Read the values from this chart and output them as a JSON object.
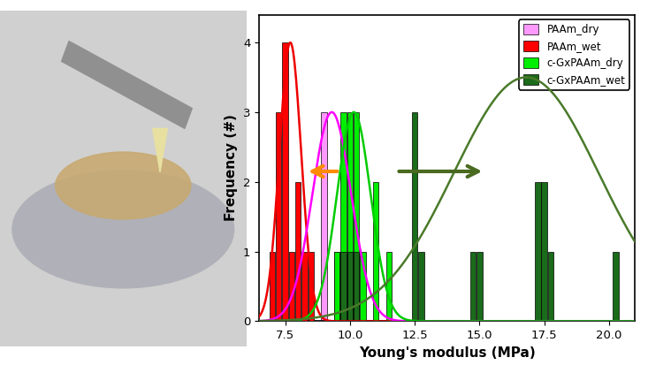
{
  "xlabel": "Young's modulus (MPa)",
  "ylabel": "Frequency (#)",
  "xlim": [
    6.5,
    21.0
  ],
  "ylim": [
    0,
    4.4
  ],
  "yticks": [
    0,
    1,
    2,
    3,
    4
  ],
  "xticks": [
    7.5,
    10.0,
    12.5,
    15.0,
    17.5,
    20.0
  ],
  "PAAm_dry": {
    "bars": [
      {
        "x": 9.0,
        "height": 3
      },
      {
        "x": 9.5,
        "height": 1
      },
      {
        "x": 10.0,
        "height": 1
      }
    ],
    "color": "#FF99FF",
    "curve_mean": 9.3,
    "curve_std": 0.75,
    "curve_scale": 3.0
  },
  "PAAm_wet": {
    "bars": [
      {
        "x": 7.0,
        "height": 1
      },
      {
        "x": 7.25,
        "height": 3
      },
      {
        "x": 7.5,
        "height": 4
      },
      {
        "x": 7.75,
        "height": 1
      },
      {
        "x": 8.0,
        "height": 2
      },
      {
        "x": 8.25,
        "height": 1
      },
      {
        "x": 8.5,
        "height": 1
      }
    ],
    "color": "#FF0000",
    "curve_mean": 7.7,
    "curve_std": 0.42,
    "curve_scale": 4.0
  },
  "cGxPAAm_dry": {
    "bars": [
      {
        "x": 9.5,
        "height": 1
      },
      {
        "x": 9.75,
        "height": 3
      },
      {
        "x": 10.0,
        "height": 3
      },
      {
        "x": 10.25,
        "height": 3
      },
      {
        "x": 10.5,
        "height": 1
      },
      {
        "x": 11.0,
        "height": 2
      },
      {
        "x": 11.5,
        "height": 1
      }
    ],
    "color": "#00EE00",
    "curve_mean": 10.15,
    "curve_std": 0.65,
    "curve_scale": 3.0
  },
  "cGxPAAm_wet": {
    "bars": [
      {
        "x": 9.75,
        "height": 1
      },
      {
        "x": 10.0,
        "height": 1
      },
      {
        "x": 10.25,
        "height": 1
      },
      {
        "x": 12.5,
        "height": 3
      },
      {
        "x": 12.75,
        "height": 1
      },
      {
        "x": 14.75,
        "height": 1
      },
      {
        "x": 15.0,
        "height": 1
      },
      {
        "x": 17.25,
        "height": 2
      },
      {
        "x": 17.5,
        "height": 2
      },
      {
        "x": 17.75,
        "height": 1
      },
      {
        "x": 20.25,
        "height": 1
      }
    ],
    "color": "#1A6B1A",
    "curve_mean": 16.8,
    "curve_std": 2.8,
    "curve_scale": 3.5
  },
  "legend": [
    {
      "label": "PAAm_dry",
      "color": "#FF99FF"
    },
    {
      "label": "PAAm_wet",
      "color": "#FF0000"
    },
    {
      "label": "c-GxPAAm_dry",
      "color": "#00EE00"
    },
    {
      "label": "c-GxPAAm_wet",
      "color": "#1A6B1A"
    }
  ],
  "orange_arrow": {
    "x_start": 9.6,
    "y": 2.15,
    "x_end": 8.3
  },
  "dark_green_arrow": {
    "x_start": 11.8,
    "y": 2.15,
    "x_end": 15.2
  },
  "fig_width": 7.33,
  "fig_height": 4.13,
  "dpi": 100
}
